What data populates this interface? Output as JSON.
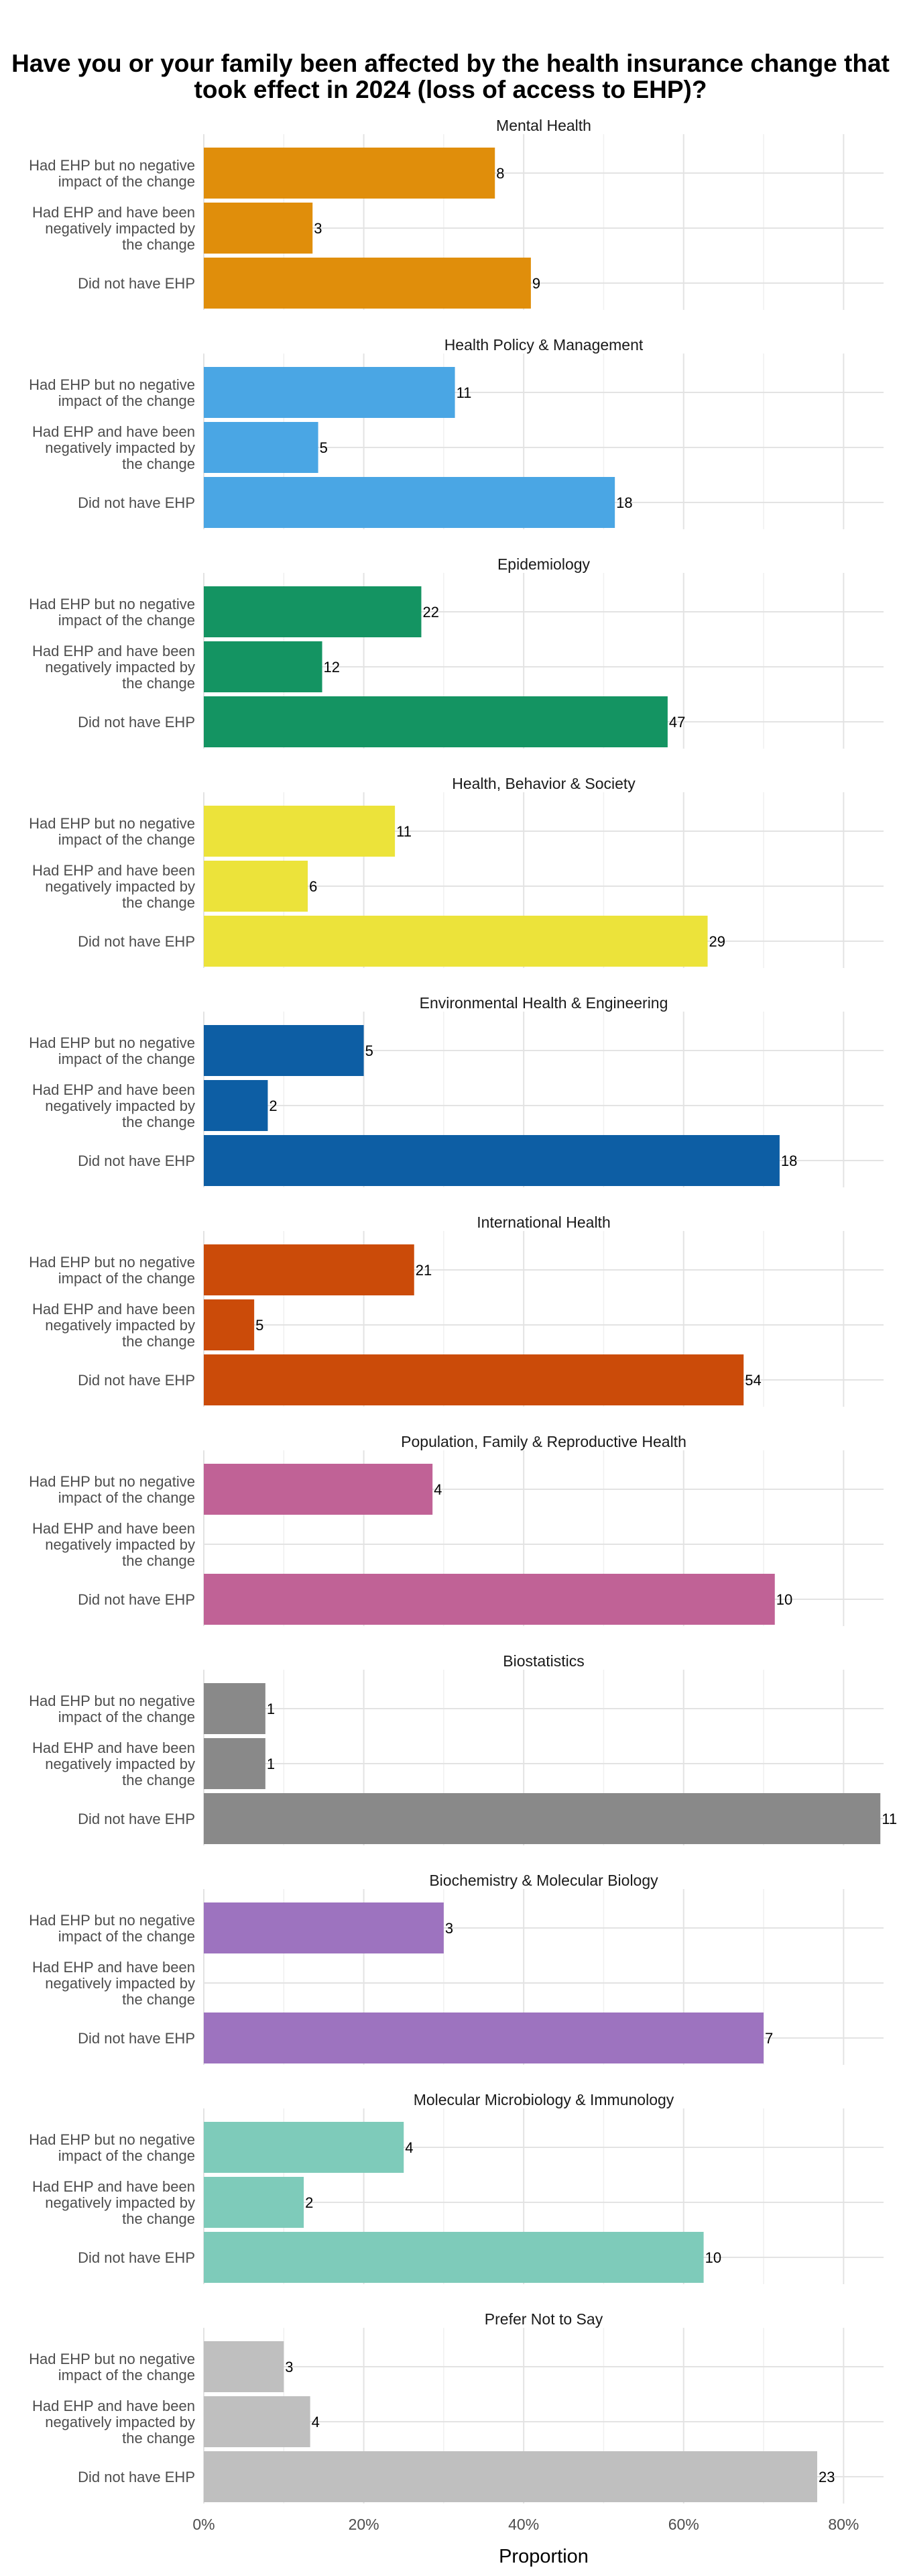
{
  "chart_data": {
    "type": "bar",
    "orientation": "horizontal",
    "title": "Have you or your family been affected by the health insurance change that took effect in 2024 (loss of access to EHP)?",
    "xlabel": "Proportion",
    "ylabel": "",
    "xlim": [
      0,
      0.85
    ],
    "x_ticks": [
      0,
      0.2,
      0.4,
      0.6,
      0.8
    ],
    "x_tick_labels": [
      "0%",
      "20%",
      "40%",
      "60%",
      "80%"
    ],
    "grid": true,
    "legend": "none",
    "categories": [
      "Had EHP but no negative impact of the change",
      "Had EHP and have been negatively impacted by the change",
      "Did not have EHP"
    ],
    "panels": [
      {
        "name": "Mental Health",
        "color": "#E08E0B",
        "proportions": [
          0.364,
          0.136,
          0.409
        ],
        "counts": [
          "8",
          "3",
          "9"
        ]
      },
      {
        "name": "Health Policy & Management",
        "color": "#4AA6E4",
        "proportions": [
          0.314,
          0.143,
          0.514
        ],
        "counts": [
          "11",
          "5",
          "18"
        ]
      },
      {
        "name": "Epidemiology",
        "color": "#149462",
        "proportions": [
          0.272,
          0.148,
          0.58
        ],
        "counts": [
          "22",
          "12",
          "47"
        ]
      },
      {
        "name": "Health, Behavior & Society",
        "color": "#ECE33A",
        "proportions": [
          0.239,
          0.13,
          0.63
        ],
        "counts": [
          "11",
          "6",
          "29"
        ]
      },
      {
        "name": "Environmental Health & Engineering",
        "color": "#0D5EA4",
        "proportions": [
          0.2,
          0.08,
          0.72
        ],
        "counts": [
          "5",
          "2",
          "18"
        ]
      },
      {
        "name": "International Health",
        "color": "#CB4B09",
        "proportions": [
          0.263,
          0.063,
          0.675
        ],
        "counts": [
          "21",
          "5",
          "54"
        ]
      },
      {
        "name": "Population, Family & Reproductive Health",
        "color": "#C06296",
        "proportions": [
          0.286,
          0,
          0.714
        ],
        "counts": [
          "4",
          "",
          "10"
        ]
      },
      {
        "name": "Biostatistics",
        "color": "#898989",
        "proportions": [
          0.077,
          0.077,
          0.846
        ],
        "counts": [
          "1",
          "1",
          "11"
        ]
      },
      {
        "name": "Biochemistry & Molecular Biology",
        "color": "#9D73BF",
        "proportions": [
          0.3,
          0,
          0.7
        ],
        "counts": [
          "3",
          "",
          "7"
        ]
      },
      {
        "name": "Molecular Microbiology & Immunology",
        "color": "#7ECBBA",
        "proportions": [
          0.25,
          0.125,
          0.625
        ],
        "counts": [
          "4",
          "2",
          "10"
        ]
      },
      {
        "name": "Prefer Not to Say",
        "color": "#BFBFBF",
        "proportions": [
          0.1,
          0.133,
          0.767
        ],
        "counts": [
          "3",
          "4",
          "23"
        ]
      }
    ]
  }
}
